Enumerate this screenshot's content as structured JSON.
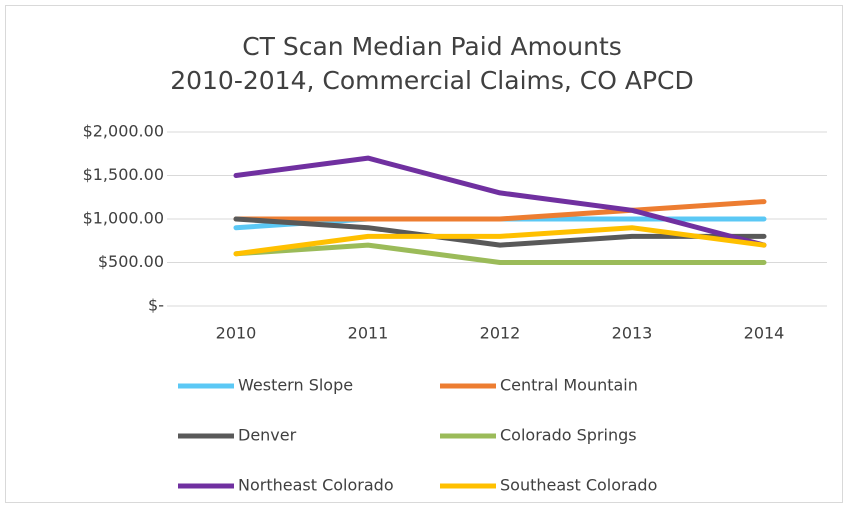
{
  "chart_data": {
    "type": "line",
    "title": "CT Scan Median Paid Amounts",
    "subtitle": "2010-2014, Commercial Claims, CO APCD",
    "categories": [
      "2010",
      "2011",
      "2012",
      "2013",
      "2014"
    ],
    "series": [
      {
        "name": "Western Slope",
        "color": "#5bc8f5",
        "values": [
          900,
          1000,
          1000,
          1000,
          1000
        ]
      },
      {
        "name": "Central Mountain",
        "color": "#ed7d31",
        "values": [
          1000,
          1000,
          1000,
          1100,
          1200
        ]
      },
      {
        "name": "Denver",
        "color": "#595959",
        "values": [
          1000,
          900,
          700,
          800,
          800
        ]
      },
      {
        "name": "Colorado Springs",
        "color": "#9bbb59",
        "values": [
          600,
          700,
          500,
          500,
          500
        ]
      },
      {
        "name": "Northeast Colorado",
        "color": "#7030a0",
        "values": [
          1500,
          1700,
          1300,
          1100,
          700
        ]
      },
      {
        "name": "Southeast Colorado",
        "color": "#ffc000",
        "values": [
          600,
          800,
          800,
          900,
          700
        ]
      }
    ],
    "ylim": [
      0,
      2000
    ],
    "yticks": [
      {
        "value": 0,
        "label": "$-"
      },
      {
        "value": 500,
        "label": "$500.00"
      },
      {
        "value": 1000,
        "label": "$1,000.00"
      },
      {
        "value": 1500,
        "label": "$1,500.00"
      },
      {
        "value": 2000,
        "label": "$2,000.00"
      }
    ],
    "grid": true,
    "legend": "bottom"
  }
}
